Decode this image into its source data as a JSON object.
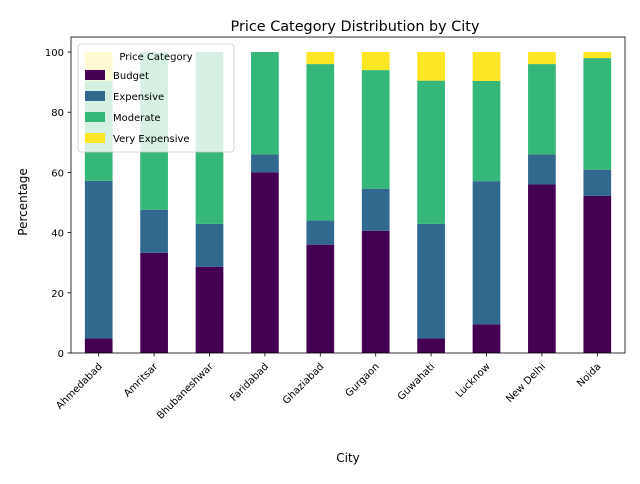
{
  "chart_data": {
    "type": "bar",
    "stacked": true,
    "title": "Price Category Distribution by City",
    "xlabel": "City",
    "ylabel": "Percentage",
    "ylim": [
      0,
      105
    ],
    "yticks": [
      0,
      20,
      40,
      60,
      80,
      100
    ],
    "grid": false,
    "categories": [
      "Ahmedabad",
      "Amritsar",
      "Bhubaneshwar",
      "Faridabad",
      "Ghaziabad",
      "Gurgaon",
      "Guwahati",
      "Lucknow",
      "New Delhi",
      "Noida"
    ],
    "series": [
      {
        "name": "Budget",
        "color": "#440154",
        "values": [
          4.8,
          33.3,
          28.6,
          60.0,
          36.0,
          40.6,
          4.8,
          9.5,
          56.0,
          52.2
        ]
      },
      {
        "name": "Expensive",
        "color": "#31688e",
        "values": [
          52.4,
          14.3,
          14.3,
          6.0,
          8.0,
          14.0,
          38.1,
          47.6,
          10.0,
          8.7
        ]
      },
      {
        "name": "Moderate",
        "color": "#35b779",
        "values": [
          33.3,
          52.4,
          57.1,
          34.0,
          52.0,
          39.4,
          47.6,
          33.3,
          30.0,
          37.1
        ]
      },
      {
        "name": "Very Expensive",
        "color": "#fde725",
        "values": [
          9.5,
          0,
          0,
          0,
          4.0,
          6.0,
          9.5,
          9.6,
          4.0,
          2.0
        ]
      }
    ],
    "legend": {
      "title": "Price Category",
      "placement": "top-left"
    }
  }
}
